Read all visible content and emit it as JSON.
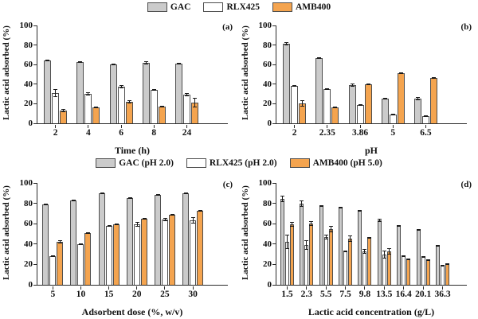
{
  "colors": {
    "GAC": "#cbcbcb",
    "RLX425": "#ffffff",
    "AMB400": "#f4a44f",
    "bar_border": "#4d4d4d",
    "axis": "#2b2b2b",
    "error_bar": "#1a1a1a"
  },
  "legend_top": {
    "items": [
      {
        "series": "GAC",
        "label": "GAC"
      },
      {
        "series": "RLX425",
        "label": "RLX425"
      },
      {
        "series": "AMB400",
        "label": "AMB400"
      }
    ]
  },
  "legend_bottom": {
    "items": [
      {
        "series": "GAC",
        "label": "GAC (pH 2.0)"
      },
      {
        "series": "RLX425",
        "label": "RLX425 (pH 2.0)"
      },
      {
        "series": "AMB400",
        "label": "AMB400 (pH 5.0)"
      }
    ]
  },
  "chart_data": [
    {
      "id": "a",
      "type": "bar",
      "panel_label": "(a)",
      "title": "",
      "xlabel": "Time (h)",
      "ylabel": "Lactic acid adsorbed (%)",
      "ylim": [
        0,
        100
      ],
      "yticks": [
        0,
        20,
        40,
        60,
        80,
        100
      ],
      "categories": [
        "2",
        "4",
        "6",
        "8",
        "24"
      ],
      "series": [
        {
          "name": "GAC",
          "values": [
            64,
            63,
            60,
            62,
            61
          ],
          "errors": [
            0.5,
            0.5,
            0.5,
            2,
            0.5
          ]
        },
        {
          "name": "RLX425",
          "values": [
            31,
            30,
            37,
            34,
            29
          ],
          "errors": [
            4,
            1.5,
            2,
            0.5,
            2
          ]
        },
        {
          "name": "AMB400",
          "values": [
            13,
            16,
            22,
            17,
            21
          ],
          "errors": [
            2,
            1,
            2,
            1,
            5
          ]
        }
      ]
    },
    {
      "id": "b",
      "type": "bar",
      "panel_label": "(b)",
      "title": "",
      "xlabel": "pH",
      "ylabel": "Lactic acid adsorbed (%)",
      "ylim": [
        0,
        100
      ],
      "yticks": [
        0,
        20,
        40,
        60,
        80,
        100
      ],
      "categories": [
        "2",
        "2.35",
        "3.86",
        "5",
        "6.5"
      ],
      "series": [
        {
          "name": "GAC",
          "values": [
            81,
            67,
            39,
            25,
            25
          ],
          "errors": [
            1.5,
            0.5,
            2,
            1,
            1.5
          ]
        },
        {
          "name": "RLX425",
          "values": [
            38,
            35,
            19,
            9,
            7
          ],
          "errors": [
            0.5,
            1,
            0.5,
            0.5,
            0.5
          ]
        },
        {
          "name": "AMB400",
          "values": [
            20,
            16,
            40,
            51,
            46
          ],
          "errors": [
            3,
            1,
            0.5,
            1,
            1
          ]
        }
      ]
    },
    {
      "id": "c",
      "type": "bar",
      "panel_label": "(c)",
      "title": "",
      "xlabel": "Adsorbent dose (%, w/v)",
      "ylabel": "Lactic acid adsorbed (%)",
      "ylim": [
        0,
        100
      ],
      "yticks": [
        0,
        20,
        40,
        60,
        80,
        100
      ],
      "categories": [
        "5",
        "10",
        "15",
        "20",
        "25",
        "30"
      ],
      "series": [
        {
          "name": "GAC",
          "values": [
            79,
            83,
            90,
            85,
            88,
            90
          ],
          "errors": [
            0.5,
            0.5,
            1,
            0.5,
            0.5,
            0.5
          ]
        },
        {
          "name": "RLX425",
          "values": [
            28,
            40,
            58,
            59,
            64,
            63
          ],
          "errors": [
            0.5,
            0.5,
            1,
            2,
            1.5,
            3
          ]
        },
        {
          "name": "AMB400",
          "values": [
            42,
            51,
            59,
            65,
            69,
            73
          ],
          "errors": [
            1.5,
            0.5,
            1,
            1,
            1,
            1
          ]
        }
      ]
    },
    {
      "id": "d",
      "type": "bar",
      "panel_label": "(d)",
      "title": "",
      "xlabel": "Lactic acid concentration (g/L)",
      "ylabel": "Lactic acid adsorbed (%)",
      "ylim": [
        0,
        100
      ],
      "yticks": [
        0,
        20,
        40,
        60,
        80,
        100
      ],
      "categories": [
        "1.5",
        "2.3",
        "5.5",
        "7.5",
        "9.8",
        "13.5",
        "16.4",
        "20.1",
        "36.3"
      ],
      "series": [
        {
          "name": "GAC",
          "values": [
            84,
            80,
            77,
            76,
            73,
            63,
            58,
            54,
            38
          ],
          "errors": [
            3,
            3,
            0.5,
            0.5,
            0.5,
            1.5,
            0.5,
            0.5,
            0.5
          ]
        },
        {
          "name": "RLX425",
          "values": [
            42,
            39,
            47,
            33,
            33,
            30,
            28,
            27,
            19
          ],
          "errors": [
            7,
            5,
            2,
            0.5,
            2,
            4,
            1,
            1,
            0.5
          ]
        },
        {
          "name": "AMB400",
          "values": [
            59,
            60,
            55,
            45,
            46,
            33,
            25,
            24,
            20
          ],
          "errors": [
            2,
            2,
            3,
            3,
            0.5,
            3,
            1,
            1,
            0.5
          ]
        }
      ]
    }
  ]
}
